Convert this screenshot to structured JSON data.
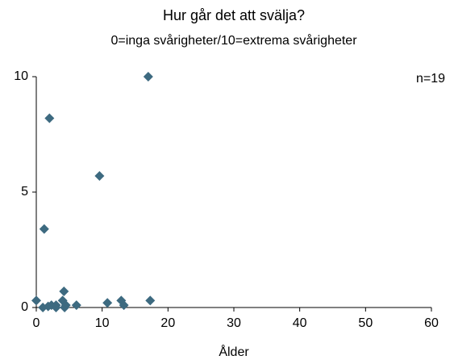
{
  "chart_data": {
    "type": "scatter",
    "title": "Hur går det att svälja?",
    "subtitle": "0=inga svårigheter/10=extrema svårigheter",
    "xlabel": "Ålder",
    "annotation": "n=19",
    "color": "#3d6a80",
    "x": [
      0,
      1.2,
      2.0,
      1.0,
      1.8,
      2.3,
      3.0,
      3.0,
      4.2,
      4.0,
      4.5,
      4.3,
      6.1,
      9.6,
      10.8,
      12.9,
      13.3,
      17.0,
      17.3
    ],
    "values": [
      0.3,
      3.4,
      8.2,
      0,
      0.05,
      0.1,
      0.1,
      0,
      0.7,
      0.3,
      0.1,
      0,
      0.1,
      5.7,
      0.2,
      0.3,
      0.1,
      10,
      0.3
    ],
    "xlim": [
      0,
      60
    ],
    "xticks": [
      0,
      10,
      20,
      30,
      40,
      50,
      60
    ],
    "ylim": [
      0,
      10
    ],
    "yticks": [
      0,
      5,
      10
    ]
  }
}
